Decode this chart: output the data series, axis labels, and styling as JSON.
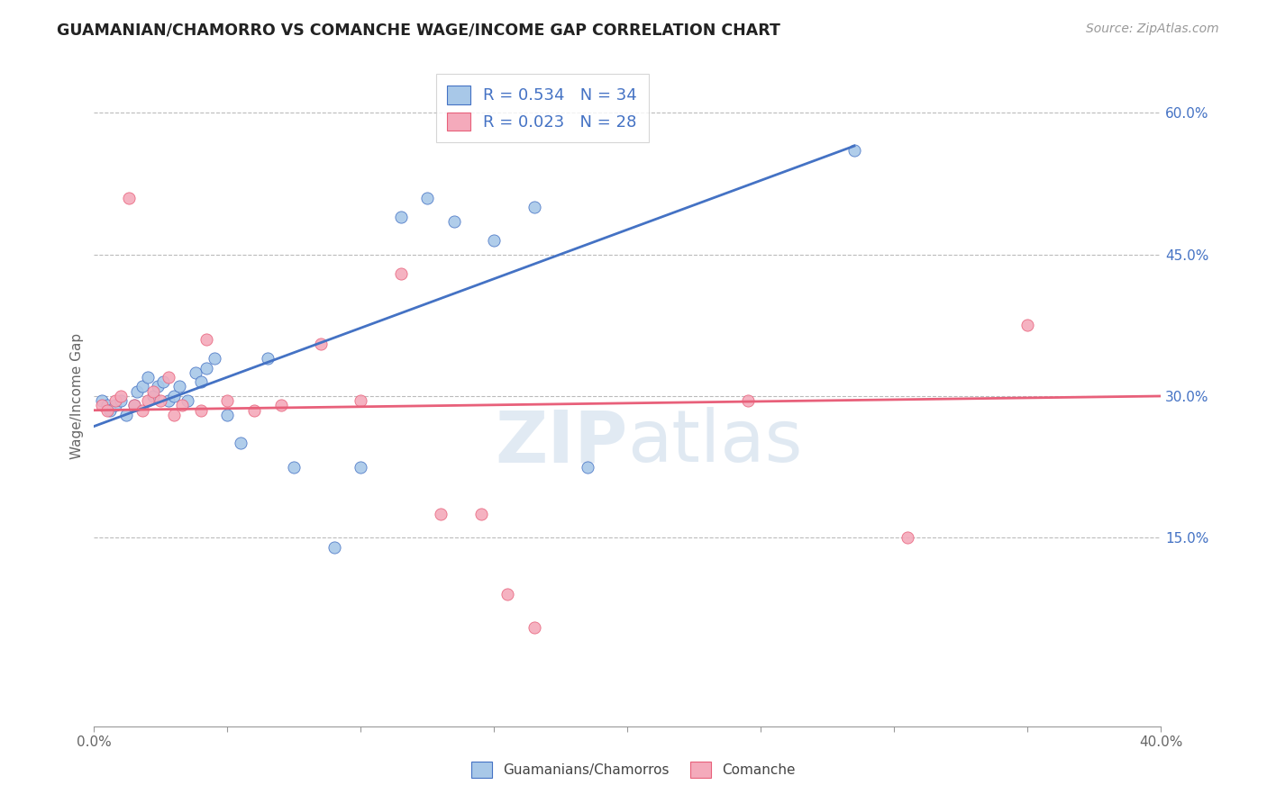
{
  "title": "GUAMANIAN/CHAMORRO VS COMANCHE WAGE/INCOME GAP CORRELATION CHART",
  "source": "Source: ZipAtlas.com",
  "ylabel": "Wage/Income Gap",
  "xlim": [
    0.0,
    0.4
  ],
  "ylim": [
    -0.05,
    0.65
  ],
  "xtick_positions": [
    0.0,
    0.05,
    0.1,
    0.15,
    0.2,
    0.25,
    0.3,
    0.35,
    0.4
  ],
  "xticklabels": [
    "0.0%",
    "",
    "",
    "",
    "",
    "",
    "",
    "",
    "40.0%"
  ],
  "yticks_right": [
    0.15,
    0.3,
    0.45,
    0.6
  ],
  "ytick_labels_right": [
    "15.0%",
    "30.0%",
    "45.0%",
    "60.0%"
  ],
  "legend_label1": "R = 0.534   N = 34",
  "legend_label2": "R = 0.023   N = 28",
  "legend_label1_short": "Guamanians/Chamorros",
  "legend_label2_short": "Comanche",
  "color_blue": "#A8C8E8",
  "color_pink": "#F4AABB",
  "line_blue": "#4472C4",
  "line_pink": "#E8607A",
  "blue_line_x0": 0.0,
  "blue_line_y0": 0.268,
  "blue_line_x1": 0.285,
  "blue_line_y1": 0.565,
  "pink_line_x0": 0.0,
  "pink_line_y0": 0.285,
  "pink_line_x1": 0.4,
  "pink_line_y1": 0.3,
  "blue_x": [
    0.003,
    0.005,
    0.006,
    0.008,
    0.01,
    0.012,
    0.015,
    0.016,
    0.018,
    0.02,
    0.022,
    0.024,
    0.026,
    0.028,
    0.03,
    0.032,
    0.035,
    0.038,
    0.04,
    0.042,
    0.045,
    0.05,
    0.055,
    0.065,
    0.075,
    0.09,
    0.1,
    0.115,
    0.125,
    0.135,
    0.15,
    0.165,
    0.185,
    0.285
  ],
  "blue_y": [
    0.295,
    0.29,
    0.285,
    0.29,
    0.295,
    0.28,
    0.29,
    0.305,
    0.31,
    0.32,
    0.3,
    0.31,
    0.315,
    0.295,
    0.3,
    0.31,
    0.295,
    0.325,
    0.315,
    0.33,
    0.34,
    0.28,
    0.25,
    0.34,
    0.225,
    0.14,
    0.225,
    0.49,
    0.51,
    0.485,
    0.465,
    0.5,
    0.225,
    0.56
  ],
  "pink_x": [
    0.003,
    0.005,
    0.008,
    0.01,
    0.013,
    0.015,
    0.018,
    0.02,
    0.022,
    0.025,
    0.028,
    0.03,
    0.033,
    0.04,
    0.042,
    0.05,
    0.06,
    0.07,
    0.085,
    0.1,
    0.115,
    0.13,
    0.145,
    0.155,
    0.165,
    0.245,
    0.305,
    0.35
  ],
  "pink_y": [
    0.29,
    0.285,
    0.295,
    0.3,
    0.51,
    0.29,
    0.285,
    0.295,
    0.305,
    0.295,
    0.32,
    0.28,
    0.29,
    0.285,
    0.36,
    0.295,
    0.285,
    0.29,
    0.355,
    0.295,
    0.43,
    0.175,
    0.175,
    0.09,
    0.055,
    0.295,
    0.15,
    0.375
  ],
  "watermark": "ZIPatlas",
  "background_color": "#FFFFFF",
  "grid_color": "#BBBBBB"
}
